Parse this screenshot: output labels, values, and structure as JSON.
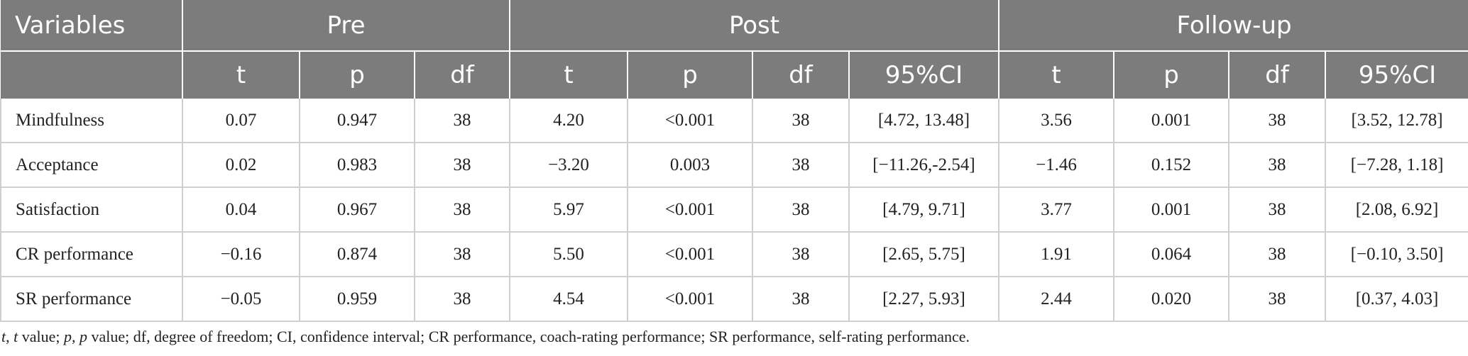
{
  "header": {
    "variables": "Variables",
    "groups": [
      "Pre",
      "Post",
      "Follow-up"
    ],
    "subheaders": [
      "t",
      "p",
      "df",
      "t",
      "p",
      "df",
      "95%CI",
      "t",
      "p",
      "df",
      "95%CI"
    ]
  },
  "rows": [
    {
      "name": "Mindfulness",
      "cells": [
        "0.07",
        "0.947",
        "38",
        "4.20",
        "<0.001",
        "38",
        "[4.72, 13.48]",
        "3.56",
        "0.001",
        "38",
        "[3.52, 12.78]"
      ]
    },
    {
      "name": "Acceptance",
      "cells": [
        "0.02",
        "0.983",
        "38",
        "−3.20",
        "0.003",
        "38",
        "[−11.26,-2.54]",
        "−1.46",
        "0.152",
        "38",
        "[−7.28, 1.18]"
      ]
    },
    {
      "name": "Satisfaction",
      "cells": [
        "0.04",
        "0.967",
        "38",
        "5.97",
        "<0.001",
        "38",
        "[4.79, 9.71]",
        "3.77",
        "0.001",
        "38",
        "[2.08, 6.92]"
      ]
    },
    {
      "name": "CR performance",
      "cells": [
        "−0.16",
        "0.874",
        "38",
        "5.50",
        "<0.001",
        "38",
        "[2.65, 5.75]",
        "1.91",
        "0.064",
        "38",
        "[−0.10, 3.50]"
      ]
    },
    {
      "name": "SR performance",
      "cells": [
        "−0.05",
        "0.959",
        "38",
        "4.54",
        "<0.001",
        "38",
        "[2.27, 5.93]",
        "2.44",
        "0.020",
        "38",
        "[0.37, 4.03]"
      ]
    }
  ],
  "note": {
    "t_sym": "t",
    "t_sep": ", ",
    "t_val": "t",
    "t_rest": " value; ",
    "p_sym": "p",
    "p_sep": ", ",
    "p_val": "p",
    "rest": " value; df, degree of freedom; CI, confidence interval; CR performance, coach-rating performance; SR performance, self-rating performance."
  },
  "colors": {
    "header_bg": "#7c7c7c",
    "header_text": "#ffffff",
    "grid": "#cfcfcf"
  }
}
